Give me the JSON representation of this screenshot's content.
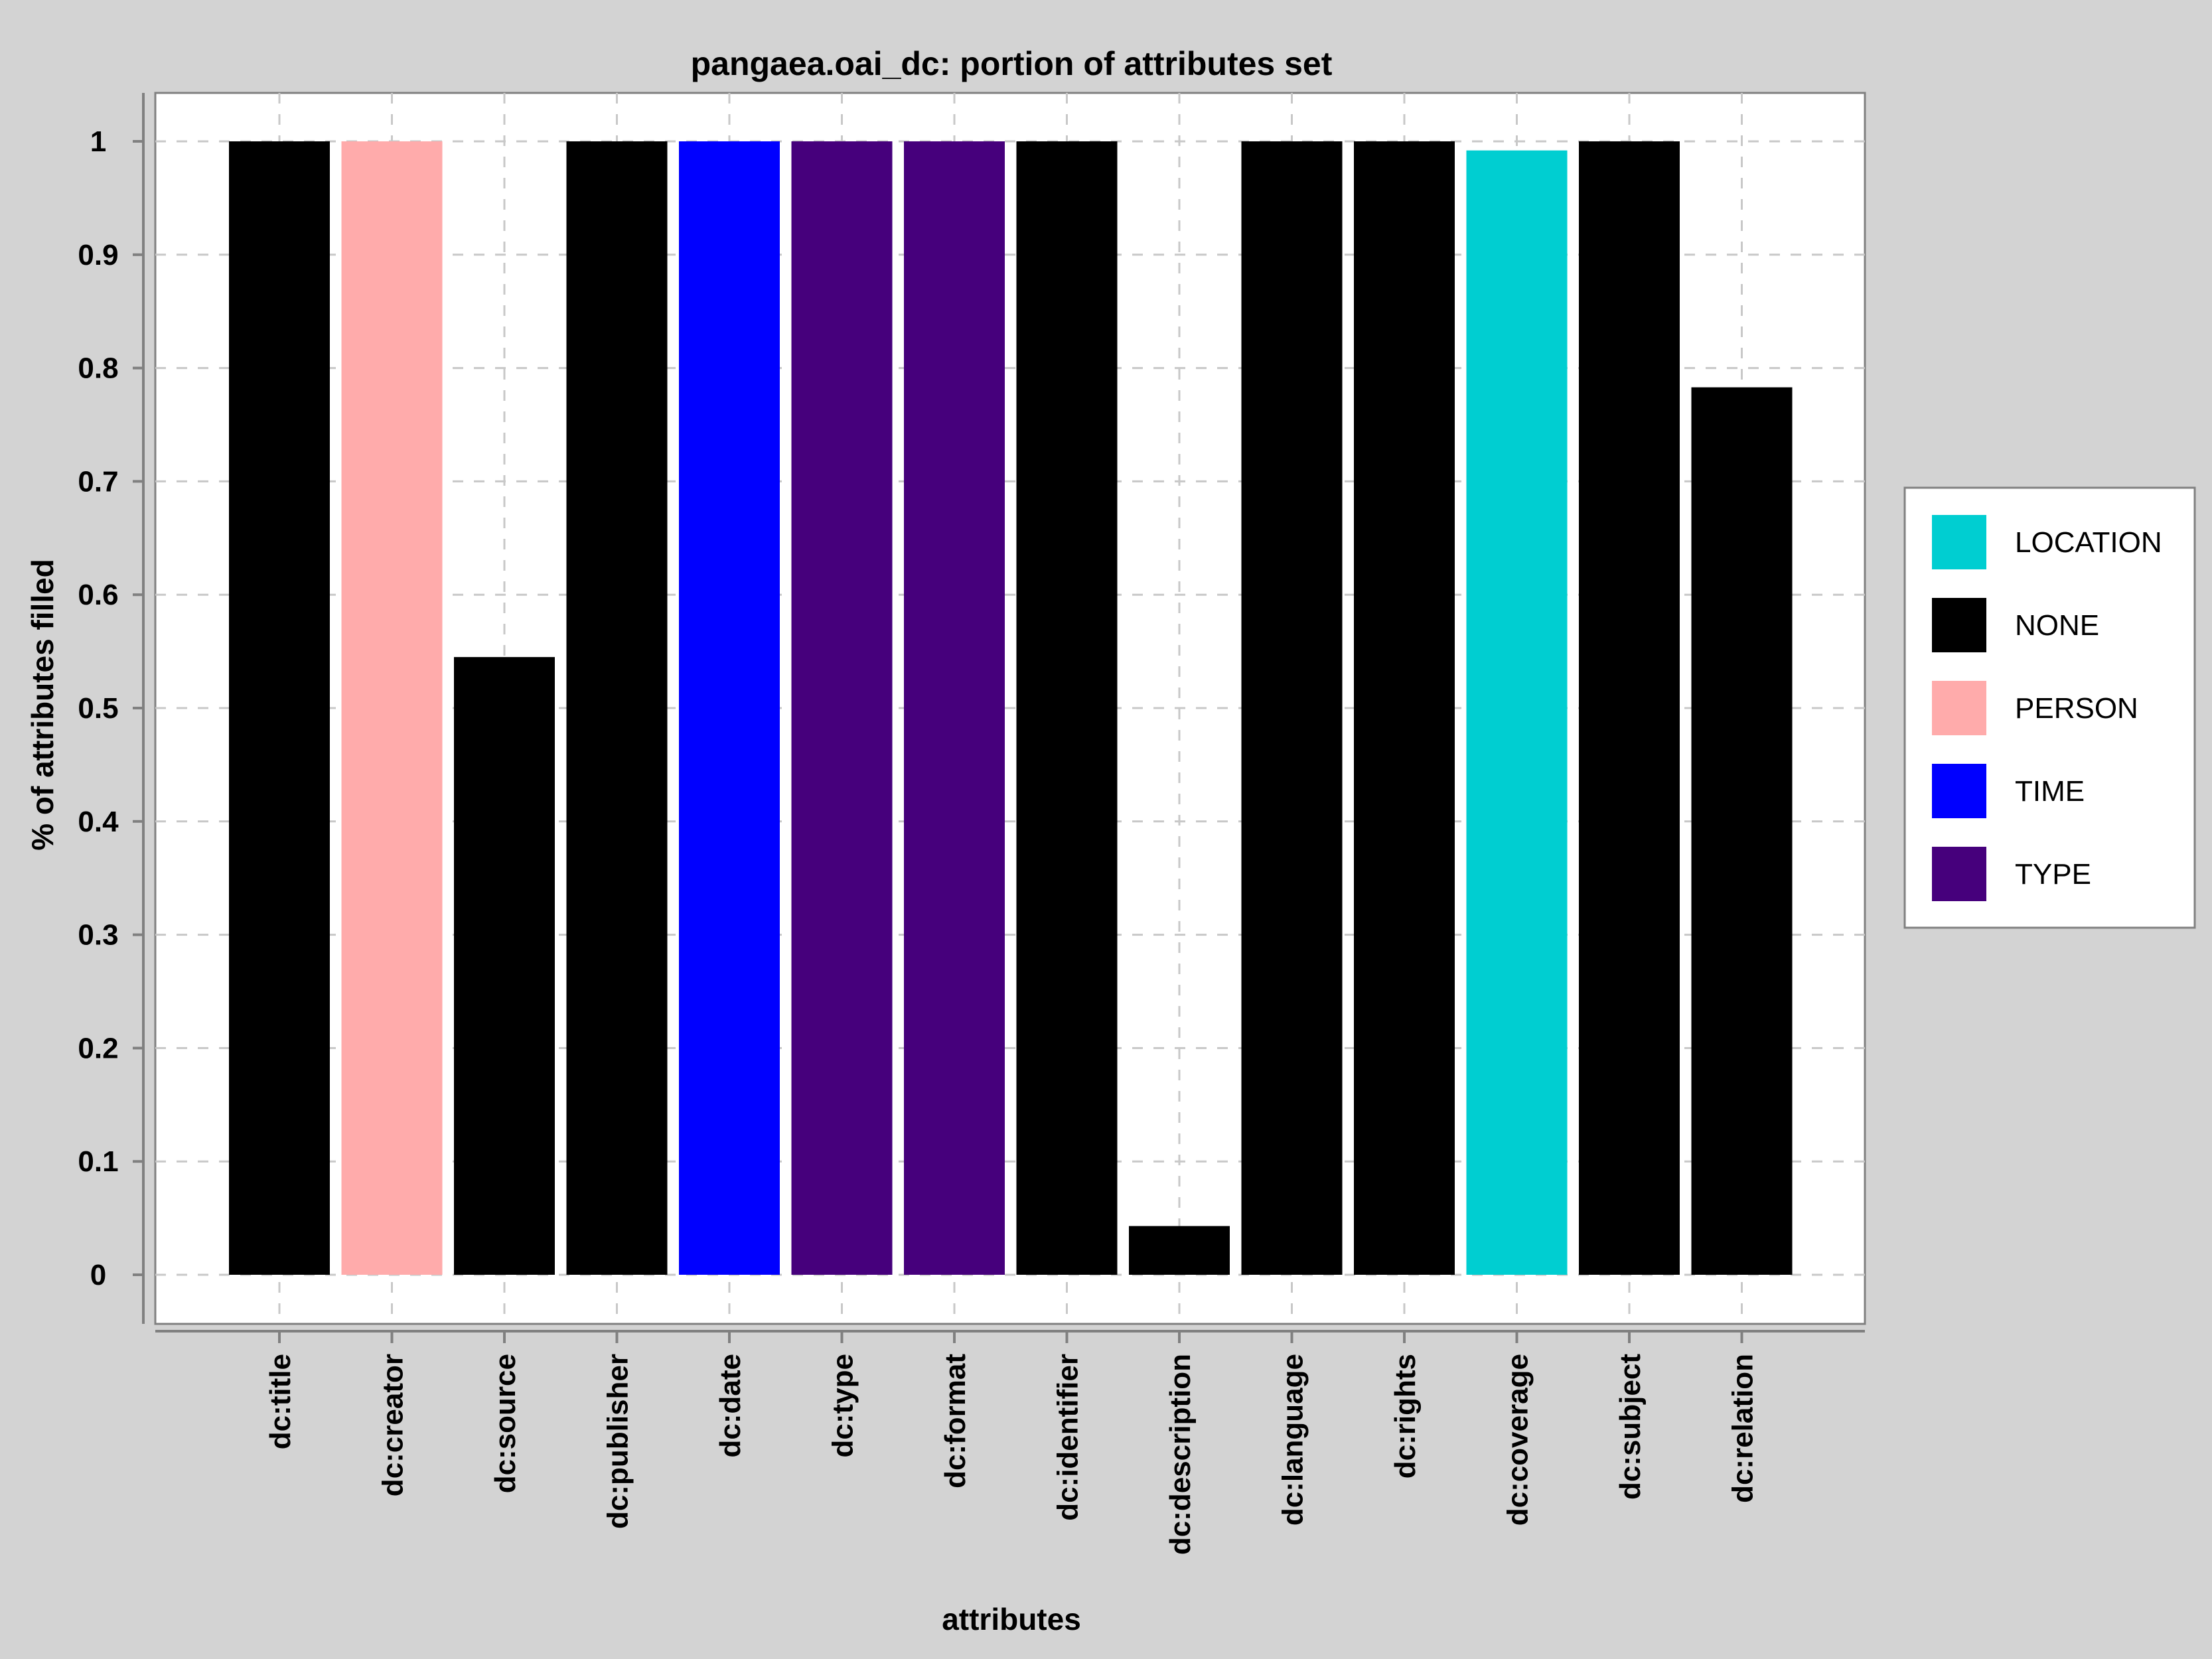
{
  "chart_data": {
    "type": "bar",
    "title": "pangaea.oai_dc: portion of attributes set",
    "xlabel": "attributes",
    "ylabel": "% of attributes filled",
    "ylim": [
      0,
      1
    ],
    "yticks": [
      "0",
      "0.1",
      "0.2",
      "0.3",
      "0.4",
      "0.5",
      "0.6",
      "0.7",
      "0.8",
      "0.9",
      "1"
    ],
    "grid": true,
    "legend_position": "right",
    "categories": [
      "dc:title",
      "dc:creator",
      "dc:source",
      "dc:publisher",
      "dc:date",
      "dc:type",
      "dc:format",
      "dc:identifier",
      "dc:description",
      "dc:language",
      "dc:rights",
      "dc:coverage",
      "dc:subject",
      "dc:relation"
    ],
    "values": [
      1.0,
      1.0,
      0.545,
      1.0,
      1.0,
      1.0,
      1.0,
      1.0,
      0.043,
      1.0,
      1.0,
      0.992,
      1.0,
      0.783
    ],
    "groups": [
      "NONE",
      "PERSON",
      "NONE",
      "NONE",
      "TIME",
      "TYPE",
      "TYPE",
      "NONE",
      "NONE",
      "NONE",
      "NONE",
      "LOCATION",
      "NONE",
      "NONE"
    ],
    "legend": [
      {
        "label": "LOCATION",
        "color": "#00ced1"
      },
      {
        "label": "NONE",
        "color": "#000000"
      },
      {
        "label": "PERSON",
        "color": "#ffabab"
      },
      {
        "label": "TIME",
        "color": "#0000ff"
      },
      {
        "label": "TYPE",
        "color": "#46007c"
      }
    ]
  }
}
